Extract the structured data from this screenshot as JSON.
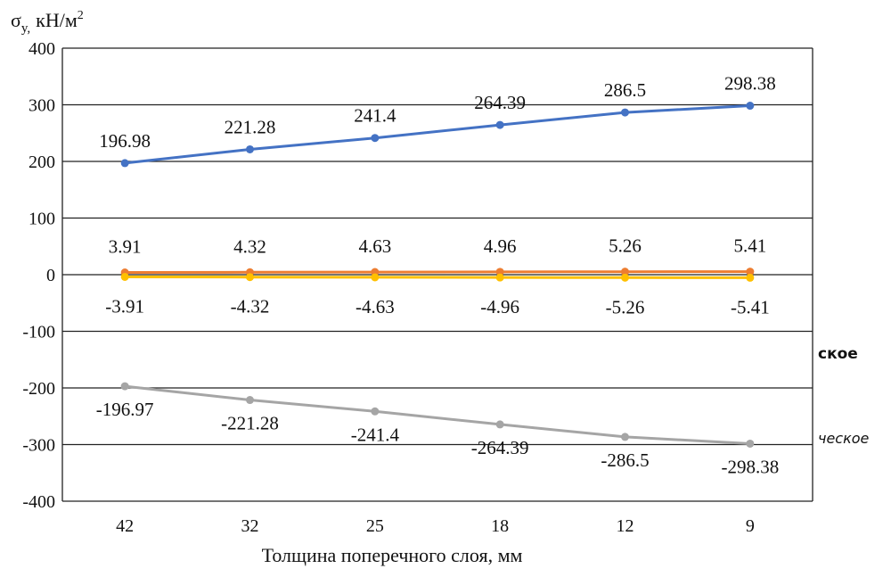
{
  "chart_data": {
    "type": "line",
    "ylabel_symbol": "σ",
    "ylabel_subscript": "y,",
    "ylabel_unit": "кН/м",
    "ylabel_power": "2",
    "xlabel": "Толщина поперечного слоя, мм",
    "categories": [
      "42",
      "32",
      "25",
      "18",
      "12",
      "9"
    ],
    "ylim": [
      -400,
      400
    ],
    "yticks": [
      400,
      300,
      200,
      100,
      0,
      -100,
      -200,
      -300,
      -400
    ],
    "grid": "horizontal",
    "series": [
      {
        "values": [
          196.98,
          221.28,
          241.4,
          264.39,
          286.5,
          298.38
        ],
        "labels": [
          "196.98",
          "221.28",
          "241.4",
          "264.39",
          "286.5",
          "298.38"
        ],
        "label_position": "above",
        "color": "#4472C4"
      },
      {
        "values": [
          3.91,
          4.32,
          4.63,
          4.96,
          5.26,
          5.41
        ],
        "labels": [
          "3.91",
          "4.32",
          "4.63",
          "4.96",
          "5.26",
          "5.41"
        ],
        "label_position": "above",
        "color": "#ED7D31"
      },
      {
        "values": [
          -3.91,
          -4.32,
          -4.63,
          -4.96,
          -5.26,
          -5.41
        ],
        "labels": [
          "-3.91",
          "-4.32",
          "-4.63",
          "-4.96",
          "-5.26",
          "-5.41"
        ],
        "label_position": "below",
        "color": "#FFC000"
      },
      {
        "values": [
          -196.97,
          -221.28,
          -241.4,
          -264.39,
          -286.5,
          -298.38
        ],
        "labels": [
          "-196.97",
          "-221.28",
          "-241.4",
          "-264.39",
          "-286.5",
          "-298.38"
        ],
        "label_position": "below",
        "color": "#A5A5A5"
      }
    ],
    "legend_fragments": [
      "ское",
      "ческое"
    ]
  }
}
